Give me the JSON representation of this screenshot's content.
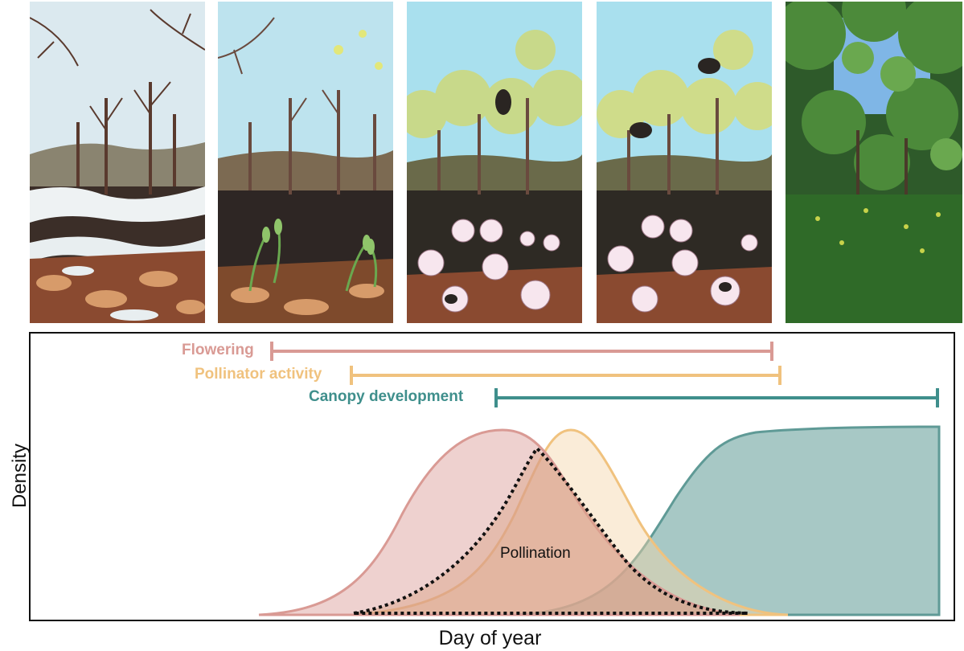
{
  "chart_data": {
    "type": "area",
    "xlabel": "Day of year",
    "ylabel": "Density",
    "ranges": [
      {
        "name": "Flowering",
        "color": "#d99a94"
      },
      {
        "name": "Pollinator activity",
        "color": "#f0c27e"
      },
      {
        "name": "Canopy development",
        "color": "#3f8f8c"
      }
    ],
    "annotation": "Pollination",
    "series": [
      {
        "color": "#d99a94"
      },
      {
        "color": "#f0c27e"
      },
      {
        "color": "#5f9a96"
      }
    ]
  },
  "panels": [
    {
      "scene": "early spring snow melt, bare trees"
    },
    {
      "scene": "sprouting seedlings, bare trees"
    },
    {
      "scene": "flowering with pollinators, leaf-out"
    },
    {
      "scene": "peak pollination, bees on flowers"
    },
    {
      "scene": "closed green canopy"
    }
  ],
  "colors": {
    "flowering": "#d99a94",
    "pollinator": "#f0c27e",
    "canopy": "#3f8f8c",
    "overlap_outline": "#111111"
  }
}
